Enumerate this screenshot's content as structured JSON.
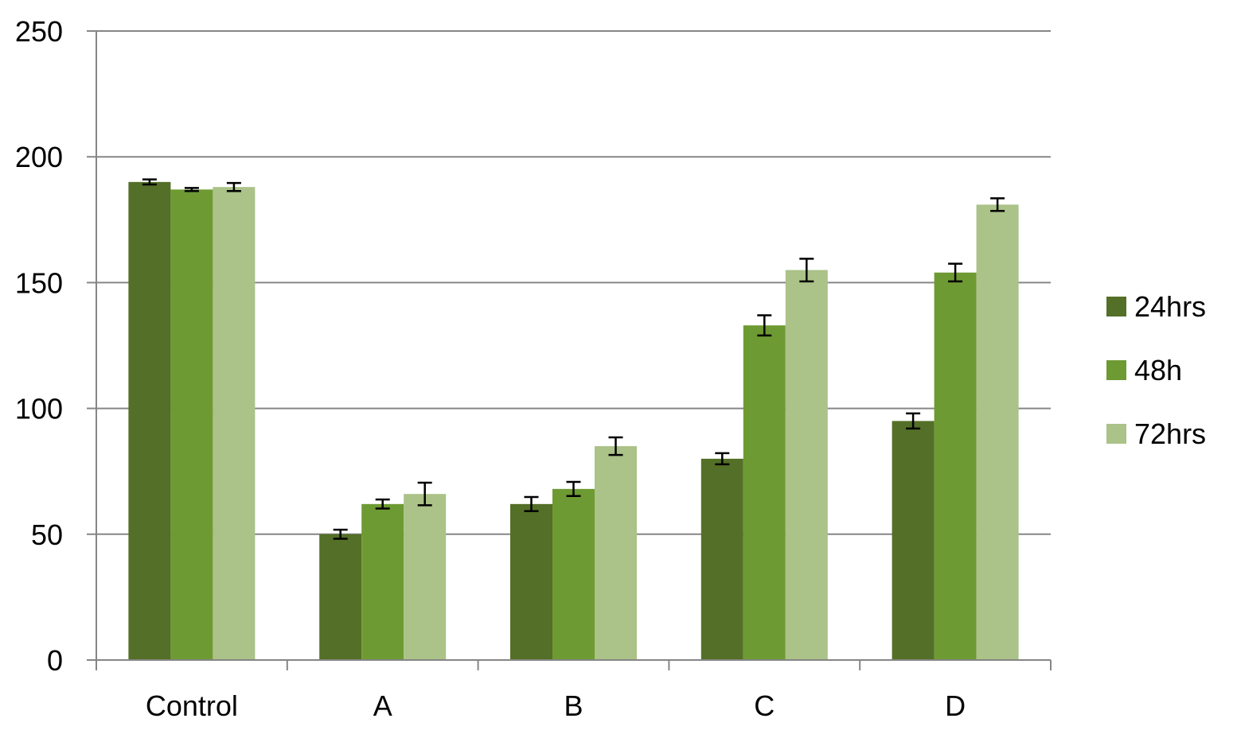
{
  "chart_data": {
    "type": "bar",
    "categories": [
      "Control",
      "A",
      "B",
      "C",
      "D"
    ],
    "series": [
      {
        "name": "24hrs",
        "color": "#546f27",
        "values": [
          190,
          50,
          62,
          80,
          95
        ],
        "errors": [
          1,
          1.8,
          2.8,
          2.2,
          3
        ]
      },
      {
        "name": "48h",
        "color": "#6e9a33",
        "values": [
          187,
          62,
          68,
          133,
          154
        ],
        "errors": [
          0.6,
          1.8,
          2.8,
          4,
          3.5
        ]
      },
      {
        "name": "72hrs",
        "color": "#abc288",
        "values": [
          188,
          66,
          85,
          155,
          181
        ],
        "errors": [
          1.6,
          4.5,
          3.5,
          4.5,
          2.5
        ]
      }
    ],
    "ylim": [
      0,
      250
    ],
    "yticks": [
      "0",
      "50",
      "100",
      "150",
      "200",
      "250"
    ],
    "title": "",
    "xlabel": "",
    "ylabel": "",
    "grid": true,
    "legend_position": "right"
  }
}
